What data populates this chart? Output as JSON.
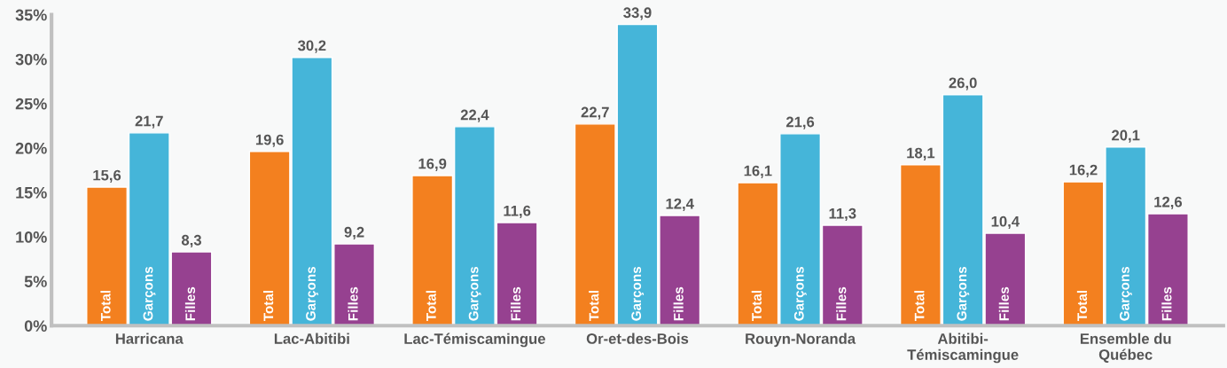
{
  "chart_data": {
    "type": "bar",
    "categories": [
      "Harricana",
      "Lac-Abitibi",
      "Lac-Témiscamingue",
      "Or-et-des-Bois",
      "Rouyn-Noranda",
      "Abitibi-\nTémiscamingue",
      "Ensemble du\nQuébec"
    ],
    "series": [
      {
        "name": "Total",
        "color": "#f3801f",
        "values": [
          15.6,
          19.6,
          16.9,
          22.7,
          16.1,
          18.1,
          16.2
        ],
        "value_labels": [
          "15,6",
          "19,6",
          "16,9",
          "22,7",
          "16,1",
          "18,1",
          "16,2"
        ]
      },
      {
        "name": "Garçons",
        "color": "#45b5d9",
        "values": [
          21.7,
          30.2,
          22.4,
          33.9,
          21.6,
          26.0,
          20.1
        ],
        "value_labels": [
          "21,7",
          "30,2",
          "22,4",
          "33,9",
          "21,6",
          "26,0",
          "20,1"
        ]
      },
      {
        "name": "Filles",
        "color": "#964190",
        "values": [
          8.3,
          9.2,
          11.6,
          12.4,
          11.3,
          10.4,
          12.6
        ],
        "value_labels": [
          "8,3",
          "9,2",
          "11,6",
          "12,4",
          "11,3",
          "10,4",
          "12,6"
        ]
      }
    ],
    "ylim": [
      0,
      35
    ],
    "yticks": [
      {
        "value": 0,
        "label": "0%"
      },
      {
        "value": 5,
        "label": "5%"
      },
      {
        "value": 10,
        "label": "10%"
      },
      {
        "value": 15,
        "label": "15%"
      },
      {
        "value": 20,
        "label": "20%"
      },
      {
        "value": 25,
        "label": "25%"
      },
      {
        "value": 30,
        "label": "30%"
      },
      {
        "value": 35,
        "label": "35%"
      }
    ],
    "grid": false,
    "legend": false
  }
}
